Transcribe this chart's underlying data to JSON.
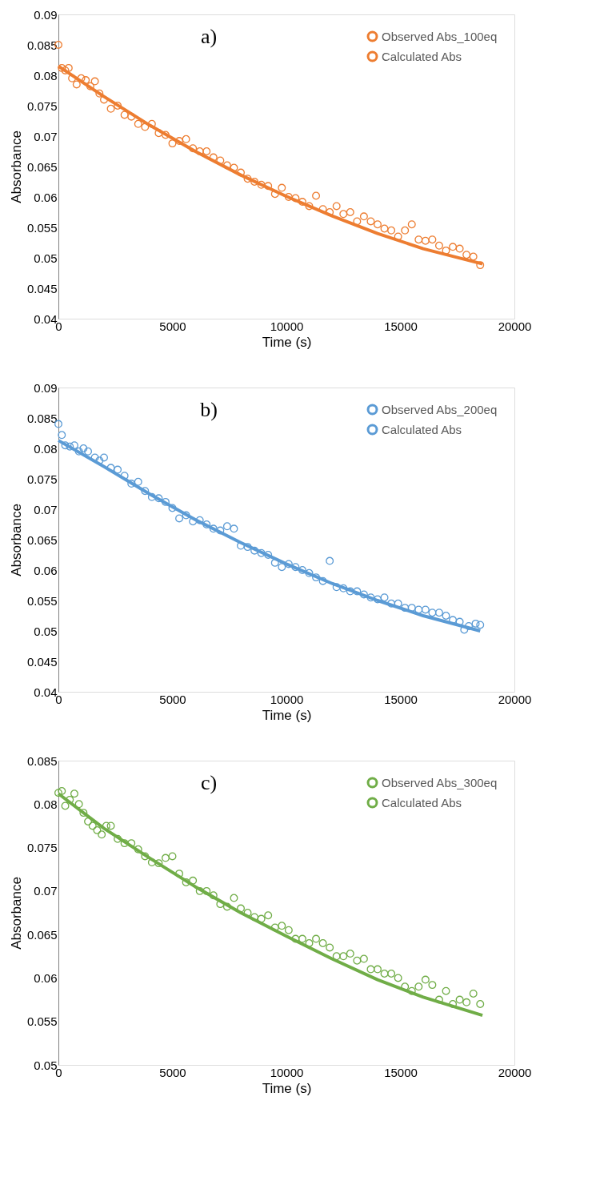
{
  "chart_data": [
    {
      "type": "scatter",
      "annotations": [
        "a)"
      ],
      "xlabel": "Time (s)",
      "ylabel": "Absorbance",
      "xlim": [
        0,
        20000
      ],
      "xticks": [
        0,
        5000,
        10000,
        15000,
        20000
      ],
      "ylim": [
        0.04,
        0.09
      ],
      "yticks": [
        0.04,
        0.045,
        0.05,
        0.055,
        0.06,
        0.065,
        0.07,
        0.075,
        0.08,
        0.085,
        0.09
      ],
      "grid": false,
      "legend": "top right",
      "series": [
        {
          "name": "Observed Abs_100eq",
          "marker": "circle",
          "color": "#ed7d31",
          "x": [
            0,
            150,
            300,
            450,
            600,
            800,
            1000,
            1200,
            1400,
            1600,
            1800,
            2000,
            2300,
            2600,
            2900,
            3200,
            3500,
            3800,
            4100,
            4400,
            4700,
            5000,
            5300,
            5600,
            5900,
            6200,
            6500,
            6800,
            7100,
            7400,
            7700,
            8000,
            8300,
            8600,
            8900,
            9200,
            9500,
            9800,
            10100,
            10400,
            10700,
            11000,
            11300,
            11600,
            11900,
            12200,
            12500,
            12800,
            13100,
            13400,
            13700,
            14000,
            14300,
            14600,
            14900,
            15200,
            15500,
            15800,
            16100,
            16400,
            16700,
            17000,
            17300,
            17600,
            17900,
            18200,
            18500
          ],
          "values": [
            0.085,
            0.0812,
            0.0808,
            0.0812,
            0.0795,
            0.0785,
            0.0795,
            0.0792,
            0.0782,
            0.079,
            0.077,
            0.076,
            0.0745,
            0.075,
            0.0735,
            0.0732,
            0.072,
            0.0715,
            0.072,
            0.0705,
            0.0702,
            0.0688,
            0.0692,
            0.0695,
            0.068,
            0.0675,
            0.0675,
            0.0665,
            0.066,
            0.0652,
            0.0648,
            0.064,
            0.063,
            0.0625,
            0.062,
            0.0618,
            0.0605,
            0.0615,
            0.06,
            0.0598,
            0.0592,
            0.0585,
            0.0602,
            0.058,
            0.0575,
            0.0585,
            0.0572,
            0.0575,
            0.056,
            0.0568,
            0.056,
            0.0555,
            0.0548,
            0.0545,
            0.0535,
            0.0545,
            0.0555,
            0.053,
            0.0528,
            0.053,
            0.052,
            0.0512,
            0.0518,
            0.0515,
            0.0505,
            0.0502,
            0.0488
          ]
        },
        {
          "name": "Calculated Abs",
          "type": "line",
          "marker": "none",
          "color": "#ed7d31",
          "x": [
            0,
            2000,
            4000,
            6000,
            8000,
            10000,
            12000,
            14000,
            16000,
            18600
          ],
          "values": [
            0.0815,
            0.0765,
            0.0718,
            0.0675,
            0.0636,
            0.0601,
            0.0569,
            0.054,
            0.0515,
            0.049
          ]
        }
      ]
    },
    {
      "type": "scatter",
      "annotations": [
        "b)"
      ],
      "xlabel": "Time (s)",
      "ylabel": "Absorbance",
      "xlim": [
        0,
        20000
      ],
      "xticks": [
        0,
        5000,
        10000,
        15000,
        20000
      ],
      "ylim": [
        0.04,
        0.09
      ],
      "yticks": [
        0.04,
        0.045,
        0.05,
        0.055,
        0.06,
        0.065,
        0.07,
        0.075,
        0.08,
        0.085,
        0.09
      ],
      "grid": false,
      "legend": "top right",
      "series": [
        {
          "name": "Observed Abs_200eq",
          "marker": "circle",
          "color": "#5b9bd5",
          "x": [
            0,
            150,
            300,
            500,
            700,
            900,
            1100,
            1300,
            1600,
            1800,
            2000,
            2300,
            2600,
            2900,
            3200,
            3500,
            3800,
            4100,
            4400,
            4700,
            5000,
            5300,
            5600,
            5900,
            6200,
            6500,
            6800,
            7100,
            7400,
            7700,
            8000,
            8300,
            8600,
            8900,
            9200,
            9500,
            9800,
            10100,
            10400,
            10700,
            11000,
            11300,
            11600,
            11900,
            12200,
            12500,
            12800,
            13100,
            13400,
            13700,
            14000,
            14300,
            14600,
            14900,
            15200,
            15500,
            15800,
            16100,
            16400,
            16700,
            17000,
            17300,
            17600,
            17800,
            18000,
            18300,
            18500
          ],
          "values": [
            0.084,
            0.0822,
            0.0805,
            0.0803,
            0.0805,
            0.0795,
            0.08,
            0.0795,
            0.0785,
            0.078,
            0.0785,
            0.0768,
            0.0765,
            0.0755,
            0.0742,
            0.0745,
            0.073,
            0.072,
            0.0718,
            0.0712,
            0.0702,
            0.0685,
            0.069,
            0.068,
            0.0682,
            0.0675,
            0.0668,
            0.0665,
            0.0672,
            0.0668,
            0.064,
            0.0638,
            0.0632,
            0.0628,
            0.0625,
            0.0612,
            0.0605,
            0.061,
            0.0605,
            0.06,
            0.0595,
            0.0588,
            0.0582,
            0.0615,
            0.0572,
            0.057,
            0.0565,
            0.0565,
            0.056,
            0.0555,
            0.0552,
            0.0555,
            0.0545,
            0.0545,
            0.0538,
            0.0538,
            0.0535,
            0.0535,
            0.053,
            0.053,
            0.0525,
            0.0518,
            0.0515,
            0.0502,
            0.0508,
            0.0512,
            0.051
          ]
        },
        {
          "name": "Calculated Abs",
          "type": "line",
          "marker": "none",
          "color": "#5b9bd5",
          "x": [
            0,
            2000,
            4000,
            6000,
            8000,
            10000,
            12000,
            14000,
            16000,
            18500
          ],
          "values": [
            0.0813,
            0.077,
            0.0725,
            0.0683,
            0.0645,
            0.061,
            0.0578,
            0.055,
            0.0525,
            0.05
          ]
        }
      ]
    },
    {
      "type": "scatter",
      "annotations": [
        "c)"
      ],
      "xlabel": "Time (s)",
      "ylabel": "Absorbance",
      "xlim": [
        0,
        20000
      ],
      "xticks": [
        0,
        5000,
        10000,
        15000,
        20000
      ],
      "ylim": [
        0.05,
        0.085
      ],
      "yticks": [
        0.05,
        0.055,
        0.06,
        0.065,
        0.07,
        0.075,
        0.08,
        0.085
      ],
      "grid": false,
      "legend": "top right",
      "series": [
        {
          "name": "Observed Abs_300eq",
          "marker": "circle",
          "color": "#70ad47",
          "x": [
            0,
            150,
            300,
            500,
            700,
            900,
            1100,
            1300,
            1500,
            1700,
            1900,
            2100,
            2300,
            2600,
            2900,
            3200,
            3500,
            3800,
            4100,
            4400,
            4700,
            5000,
            5300,
            5600,
            5900,
            6200,
            6500,
            6800,
            7100,
            7400,
            7700,
            8000,
            8300,
            8600,
            8900,
            9200,
            9500,
            9800,
            10100,
            10400,
            10700,
            11000,
            11300,
            11600,
            11900,
            12200,
            12500,
            12800,
            13100,
            13400,
            13700,
            14000,
            14300,
            14600,
            14900,
            15200,
            15500,
            15800,
            16100,
            16400,
            16700,
            17000,
            17300,
            17600,
            17900,
            18200,
            18500
          ],
          "values": [
            0.0813,
            0.0815,
            0.0798,
            0.0805,
            0.0812,
            0.08,
            0.079,
            0.078,
            0.0775,
            0.077,
            0.0765,
            0.0775,
            0.0775,
            0.076,
            0.0755,
            0.0755,
            0.0748,
            0.074,
            0.0733,
            0.0732,
            0.0738,
            0.074,
            0.072,
            0.071,
            0.0712,
            0.07,
            0.07,
            0.0695,
            0.0685,
            0.0682,
            0.0692,
            0.068,
            0.0675,
            0.067,
            0.0668,
            0.0672,
            0.0658,
            0.066,
            0.0655,
            0.0645,
            0.0645,
            0.064,
            0.0645,
            0.064,
            0.0635,
            0.0625,
            0.0625,
            0.0628,
            0.062,
            0.0622,
            0.061,
            0.061,
            0.0605,
            0.0605,
            0.06,
            0.059,
            0.0585,
            0.059,
            0.0598,
            0.0592,
            0.0575,
            0.0585,
            0.057,
            0.0575,
            0.0572,
            0.0582,
            0.057
          ]
        },
        {
          "name": "Calculated Abs",
          "type": "line",
          "marker": "none",
          "color": "#70ad47",
          "x": [
            0,
            2000,
            4000,
            6000,
            8000,
            10000,
            12000,
            14000,
            16000,
            18600
          ],
          "values": [
            0.0812,
            0.0772,
            0.0738,
            0.0705,
            0.0675,
            0.0648,
            0.0622,
            0.0598,
            0.0578,
            0.0557
          ]
        }
      ]
    }
  ]
}
